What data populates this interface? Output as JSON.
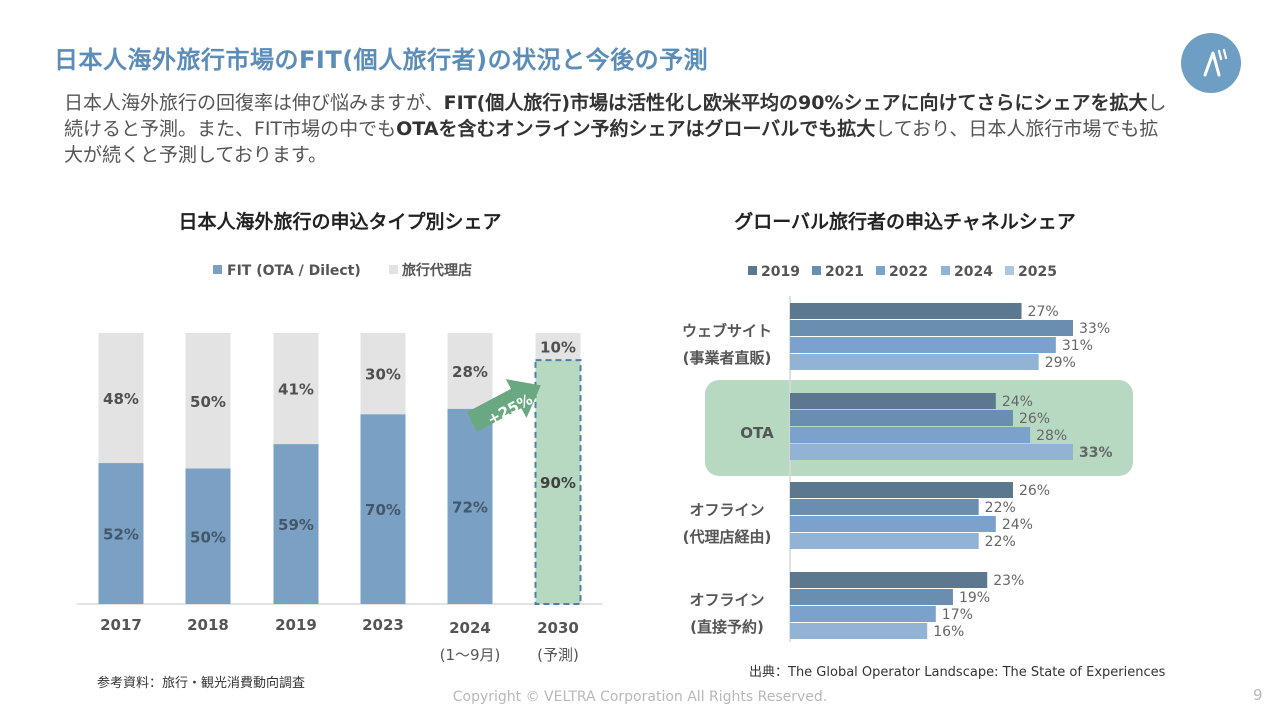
{
  "title": "日本人海外旅行市場のFIT(個人旅行者)の状況と今後の予測",
  "logo_icon": "veltra-logo-icon",
  "lead": [
    {
      "text": "日本人海外旅行の回復率は伸び悩みますが、",
      "bold": false
    },
    {
      "text": "FIT(個人旅行)市場は活性化し欧米平均の90%シェアに向けてさらにシェアを拡大",
      "bold": true
    },
    {
      "text": "し続けると予測。また、FIT市場の中でも",
      "bold": false
    },
    {
      "text": "OTAを含むオンライン予約シェアはグローバルでも拡大",
      "bold": true
    },
    {
      "text": "しており、日本人旅行市場でも拡大が続くと予測しております。",
      "bold": false
    }
  ],
  "source_left": "参考資料：旅行・観光消費動向調査",
  "source_right": "出典：The Global Operator Landscape: The State of Experiences",
  "copyright": "Copyright © VELTRA Corporation All Rights Reserved.",
  "page_number": "9",
  "colors": {
    "title": "#5b8db8",
    "fit": "#7aa0c3",
    "agency": "#e3e3e3",
    "highlight": "#b7d9c2",
    "arrow": "#6aa882",
    "y2019": "#5b7890",
    "y2021": "#6a8eb0",
    "y2022": "#7ba2cc",
    "y2024": "#93b3d5",
    "y2025": "#b2c5dc"
  },
  "chart_data": [
    {
      "type": "bar",
      "stacked": true,
      "title": "日本人海外旅行の申込タイプ別シェア",
      "categories": [
        "2017",
        "2018",
        "2019",
        "2023",
        "2024",
        "2030"
      ],
      "category_sublabels": [
        "",
        "",
        "",
        "",
        "(1〜9月)",
        "(予測)"
      ],
      "series": [
        {
          "name": "FIT (OTA / Dilect)",
          "values": [
            52,
            50,
            59,
            70,
            72,
            90
          ]
        },
        {
          "name": "旅行代理店",
          "values": [
            48,
            50,
            41,
            30,
            28,
            10
          ]
        }
      ],
      "ylim": [
        0,
        100
      ],
      "legend": "top",
      "grid": false,
      "annotation": "+25%",
      "highlight_category": "2030"
    },
    {
      "type": "bar",
      "orientation": "horizontal",
      "title": "グローバル旅行者の申込チャネルシェア",
      "categories": [
        [
          "ウェブサイト",
          "(事業者直販)"
        ],
        [
          "OTA"
        ],
        [
          "オフライン",
          "(代理店経由)"
        ],
        [
          "オフライン",
          "(直接予約)"
        ]
      ],
      "series": [
        {
          "name": "2019",
          "values": [
            27,
            24,
            26,
            23
          ]
        },
        {
          "name": "2021",
          "values": [
            33,
            26,
            22,
            19
          ]
        },
        {
          "name": "2022",
          "values": [
            31,
            28,
            24,
            17
          ]
        },
        {
          "name": "2024",
          "values": [
            29,
            33,
            22,
            16
          ]
        },
        {
          "name": "2025",
          "values": [
            null,
            null,
            null,
            null
          ]
        }
      ],
      "legend": "top",
      "grid": false,
      "highlight_category": "OTA"
    }
  ]
}
